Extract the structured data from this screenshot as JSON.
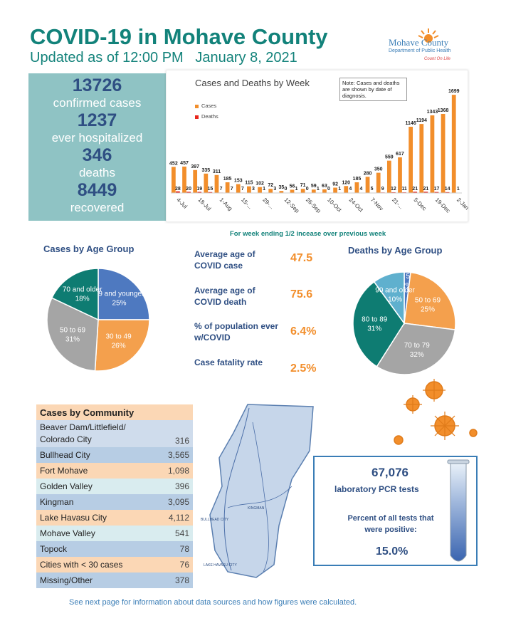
{
  "header": {
    "title": "COVID-19 in Mohave County",
    "updated": "Updated as of 12:00 PM   January 8, 2021"
  },
  "logo": {
    "name": "Mohave County",
    "dept": "Department of Public Health",
    "tagline": "Count On Life"
  },
  "summary": {
    "confirmed_num": "13726",
    "confirmed_lbl": "confirmed cases",
    "hospitalized_num": "1237",
    "hospitalized_lbl": "ever hospitalized",
    "deaths_num": "346",
    "deaths_lbl": "deaths",
    "recovered_num": "8449",
    "recovered_lbl": "recovered"
  },
  "weekly_chart": {
    "title": "Cases and Deaths by Week",
    "note": "Note: Cases and deaths are shown by date of diagnosis.",
    "legend_cases": "Cases",
    "legend_deaths": "Deaths",
    "footnote": "For week ending 1/2 incease over previous week",
    "colors": {
      "cases": "#f28e2b",
      "deaths": "#e8261c"
    }
  },
  "chart_data": [
    {
      "type": "bar",
      "title": "Cases and Deaths by Week",
      "categories": [
        "4-Jul",
        "11-Jul",
        "18-Jul",
        "25-Jul",
        "1-Aug",
        "8-Aug",
        "15-...",
        "22-Aug",
        "29-...",
        "5-Sep",
        "12-Sep",
        "19-Sep",
        "26-Sep",
        "3-Oct",
        "10-Oct",
        "17-Oct",
        "24-Oct",
        "31-Oct",
        "7-Nov",
        "14-Nov",
        "21-...",
        "28-Nov",
        "5-Dec",
        "12-Dec",
        "19-Dec",
        "26-Dec",
        "2-Jan"
      ],
      "tick_labels": [
        "4-Jul",
        "18-Jul",
        "1-Aug",
        "15-...",
        "29-...",
        "12-Sep",
        "26-Sep",
        "10-Oct",
        "24-Oct",
        "7-Nov",
        "21-...",
        "5-Dec",
        "19-Dec",
        "2-Jan"
      ],
      "series": [
        {
          "name": "Cases",
          "values": [
            452,
            457,
            397,
            335,
            311,
            185,
            153,
            115,
            102,
            72,
            35,
            56,
            71,
            59,
            63,
            92,
            120,
            185,
            280,
            350,
            559,
            617,
            1146,
            1194,
            1343,
            1368,
            1699
          ]
        },
        {
          "name": "Deaths",
          "values": [
            28,
            20,
            19,
            15,
            7,
            7,
            7,
            3,
            1,
            3,
            0,
            1,
            0,
            1,
            0,
            1,
            4,
            4,
            5,
            9,
            12,
            11,
            21,
            21,
            17,
            14,
            1
          ]
        }
      ],
      "ylim": [
        0,
        1750
      ]
    },
    {
      "type": "pie",
      "title": "Cases by Age Group",
      "labels": [
        "29 and younger",
        "30 to 49",
        "50 to 69",
        "70 and older"
      ],
      "values": [
        25,
        26,
        31,
        18
      ],
      "colors": [
        "#4e79c0",
        "#f4a04d",
        "#a5a5a5",
        "#0e7c72"
      ]
    },
    {
      "type": "pie",
      "title": "Deaths by Age Group",
      "labels": [
        "< 50",
        "50 to 69",
        "70 to 79",
        "80 to 89",
        "90 and older"
      ],
      "values": [
        2,
        25,
        32,
        31,
        10
      ],
      "colors": [
        "#4e79c0",
        "#f4a04d",
        "#a5a5a5",
        "#0e7c72",
        "#5fb0ce"
      ]
    }
  ],
  "cases_age": {
    "title": "Cases by Age Group",
    "slices": [
      {
        "label": "29 and younger",
        "pct": "25%"
      },
      {
        "label": "30 to 49",
        "pct": "26%"
      },
      {
        "label": "50 to 69",
        "pct": "31%"
      },
      {
        "label": "70 and older",
        "pct": "18%"
      }
    ]
  },
  "deaths_age": {
    "title": "Deaths by Age Group",
    "slices": [
      {
        "label": "< 50",
        "pct": "2%"
      },
      {
        "label": "50 to 69",
        "pct": "25%"
      },
      {
        "label": "70 to 79",
        "pct": "32%"
      },
      {
        "label": "80 to 89",
        "pct": "31%"
      },
      {
        "label": "90 and older",
        "pct": "10%"
      }
    ]
  },
  "stats": {
    "avg_age_case_lbl": "Average age of COVID case",
    "avg_age_case_val": "47.5",
    "avg_age_death_lbl": "Average age of COVID death",
    "avg_age_death_val": "75.6",
    "pct_pop_lbl": "% of population ever w/COVID",
    "pct_pop_val": "6.4%",
    "cfr_lbl": "Case fatality rate",
    "cfr_val": "2.5%"
  },
  "community": {
    "title": "Cases by Community",
    "rows": [
      {
        "name": "Beaver Dam/Littlefield/",
        "name2": "Colorado City",
        "value": "316"
      },
      {
        "name": "Bullhead City",
        "value": "3,565"
      },
      {
        "name": "Fort Mohave",
        "value": "1,098"
      },
      {
        "name": "Golden Valley",
        "value": "396"
      },
      {
        "name": "Kingman",
        "value": "3,095"
      },
      {
        "name": "Lake Havasu City",
        "value": "4,112"
      },
      {
        "name": "Mohave Valley",
        "value": "541"
      },
      {
        "name": "Topock",
        "value": "78"
      },
      {
        "name": "Cities with < 30 cases",
        "value": "76"
      },
      {
        "name": "Missing/Other",
        "value": "378"
      }
    ]
  },
  "map": {
    "labels": [
      "KINGMAN",
      "BULLHEAD CITY",
      "LAKE HAVASU CITY"
    ]
  },
  "lab": {
    "tests_num": "67,076",
    "tests_lbl": "laboratory PCR tests",
    "pct_lbl": "Percent of all tests that were positive:",
    "pct_val": "15.0%"
  },
  "footer": {
    "text": "See next page for information about data sources and how figures were calculated."
  }
}
